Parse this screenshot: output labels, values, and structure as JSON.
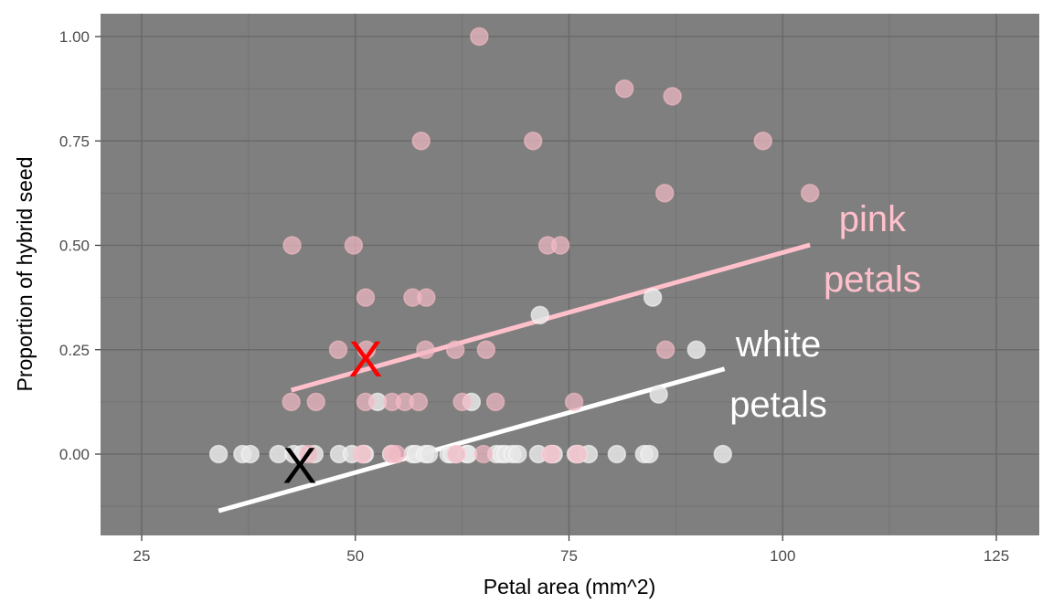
{
  "chart_data": {
    "type": "scatter",
    "title": "",
    "xlabel": "Petal area (mm^2)",
    "ylabel": "Proportion of hybrid seed",
    "xlim": [
      20.3,
      130.1
    ],
    "ylim": [
      -0.195,
      1.055
    ],
    "x_ticks": [
      25,
      50,
      75,
      100,
      125
    ],
    "x_tick_labels": [
      "25",
      "50",
      "75",
      "100",
      "125"
    ],
    "y_ticks": [
      0,
      0.25,
      0.5,
      0.75,
      1.0
    ],
    "y_tick_labels": [
      "0.00",
      "0.25",
      "0.50",
      "0.75",
      "1.00"
    ],
    "grid": true,
    "panel_background": "#7f7f7f",
    "legend": "none (direct text annotations)",
    "series": [
      {
        "name": "pink petals",
        "color": "#ffc0cb",
        "points": [
          [
            64.5,
            1.0
          ],
          [
            81.5,
            0.875
          ],
          [
            87.1,
            0.857
          ],
          [
            57.7,
            0.75
          ],
          [
            70.8,
            0.75
          ],
          [
            97.7,
            0.75
          ],
          [
            86.2,
            0.625
          ],
          [
            103.2,
            0.625
          ],
          [
            42.6,
            0.5
          ],
          [
            49.8,
            0.5
          ],
          [
            72.5,
            0.5
          ],
          [
            74.0,
            0.5
          ],
          [
            51.2,
            0.375
          ],
          [
            56.7,
            0.375
          ],
          [
            58.3,
            0.375
          ],
          [
            48.0,
            0.25
          ],
          [
            51.3,
            0.25
          ],
          [
            58.2,
            0.25
          ],
          [
            61.7,
            0.25
          ],
          [
            65.3,
            0.25
          ],
          [
            86.3,
            0.25
          ],
          [
            42.5,
            0.125
          ],
          [
            45.4,
            0.125
          ],
          [
            51.2,
            0.125
          ],
          [
            54.3,
            0.125
          ],
          [
            55.8,
            0.125
          ],
          [
            57.4,
            0.125
          ],
          [
            62.5,
            0.125
          ],
          [
            66.4,
            0.125
          ],
          [
            75.6,
            0.125
          ],
          [
            44.5,
            0.0
          ],
          [
            50.8,
            0.0
          ],
          [
            54.3,
            0.0
          ],
          [
            54.8,
            0.0
          ],
          [
            61.8,
            0.0
          ],
          [
            65.0,
            0.0
          ],
          [
            72.9,
            0.0
          ],
          [
            76.0,
            0.0
          ]
        ],
        "fit_line": {
          "x": [
            42.5,
            103.2
          ],
          "y": [
            0.153,
            0.501
          ]
        }
      },
      {
        "name": "white petals",
        "color": "#ffffff",
        "points": [
          [
            71.6,
            0.333
          ],
          [
            84.8,
            0.375
          ],
          [
            89.9,
            0.25
          ],
          [
            52.6,
            0.125
          ],
          [
            63.6,
            0.125
          ],
          [
            85.5,
            0.143
          ],
          [
            34.0,
            0.0
          ],
          [
            36.8,
            0.0
          ],
          [
            37.7,
            0.0
          ],
          [
            41.0,
            0.0
          ],
          [
            42.8,
            0.0
          ],
          [
            43.8,
            0.0
          ],
          [
            45.2,
            0.0
          ],
          [
            48.1,
            0.0
          ],
          [
            49.6,
            0.0
          ],
          [
            50.9,
            0.0
          ],
          [
            51.1,
            0.0
          ],
          [
            54.2,
            0.0
          ],
          [
            56.7,
            0.0
          ],
          [
            57.1,
            0.0
          ],
          [
            58.2,
            0.0
          ],
          [
            58.6,
            0.0
          ],
          [
            60.9,
            0.0
          ],
          [
            61.3,
            0.0
          ],
          [
            61.8,
            0.0
          ],
          [
            63.0,
            0.0
          ],
          [
            63.2,
            0.0
          ],
          [
            66.5,
            0.0
          ],
          [
            67.1,
            0.0
          ],
          [
            67.6,
            0.0
          ],
          [
            68.4,
            0.0
          ],
          [
            69.0,
            0.0
          ],
          [
            71.4,
            0.0
          ],
          [
            72.9,
            0.0
          ],
          [
            73.2,
            0.0
          ],
          [
            75.8,
            0.0
          ],
          [
            76.1,
            0.0
          ],
          [
            77.3,
            0.0
          ],
          [
            80.6,
            0.0
          ],
          [
            83.8,
            0.0
          ],
          [
            84.4,
            0.0
          ],
          [
            93.0,
            0.0
          ]
        ],
        "fit_line": {
          "x": [
            34.0,
            93.2
          ],
          "y": [
            -0.136,
            0.204
          ]
        }
      }
    ],
    "annotations": [
      {
        "text": "pink",
        "x": 110.5,
        "y": 0.565,
        "color": "#ffc0cb"
      },
      {
        "text": "petals",
        "x": 110.5,
        "y": 0.42,
        "color": "#ffc0cb"
      },
      {
        "text": "white",
        "x": 99.5,
        "y": 0.265,
        "color": "#ffffff"
      },
      {
        "text": "petals",
        "x": 99.5,
        "y": 0.12,
        "color": "#ffffff"
      },
      {
        "text": "X",
        "x": 51.2,
        "y": 0.23,
        "color": "#ff0000",
        "role": "pink-group marker"
      },
      {
        "text": "X",
        "x": 43.5,
        "y": -0.025,
        "color": "#000000",
        "role": "white-group marker"
      }
    ]
  }
}
